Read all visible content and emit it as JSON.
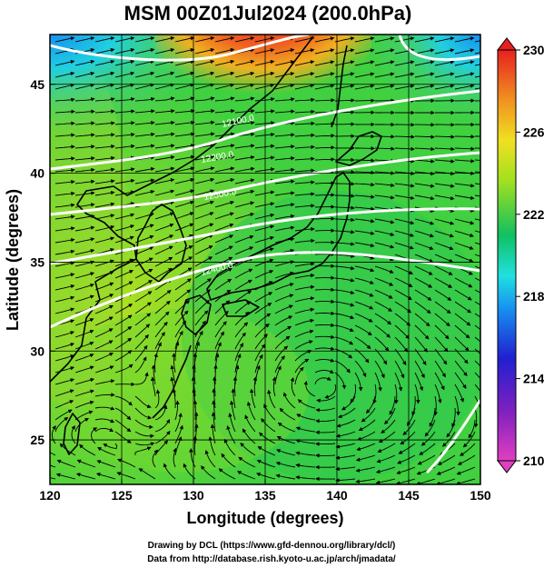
{
  "title": "MSM 00Z01Jul2024 (200.0hPa)",
  "x_axis": {
    "label": "Longitude (degrees)",
    "range": [
      120,
      150
    ],
    "ticks": [
      "120",
      "125",
      "130",
      "135",
      "140",
      "145",
      "150"
    ]
  },
  "y_axis": {
    "label": "Latitude  (degrees)",
    "range": [
      22.5,
      47.8
    ],
    "ticks": [
      "25",
      "30",
      "35",
      "40",
      "45"
    ]
  },
  "colorbar": {
    "ticks": [
      "230",
      "226",
      "222",
      "218",
      "214",
      "210"
    ],
    "range": [
      210,
      230
    ],
    "colors": [
      "#e040c0",
      "#2020d0",
      "#1890f0",
      "#20e0e0",
      "#10c060",
      "#a0e020",
      "#f0e020",
      "#f09020",
      "#e82020"
    ]
  },
  "contour_labels": [
    "12100.0",
    "12200.0",
    "12300.0",
    "12400.0"
  ],
  "footer": {
    "line1": "Drawing by DCL (https://www.gfd-dennou.org/library/dcl/)",
    "line2": "Data from http://database.rish.kyoto-u.ac.jp/arch/jmadata/"
  }
}
